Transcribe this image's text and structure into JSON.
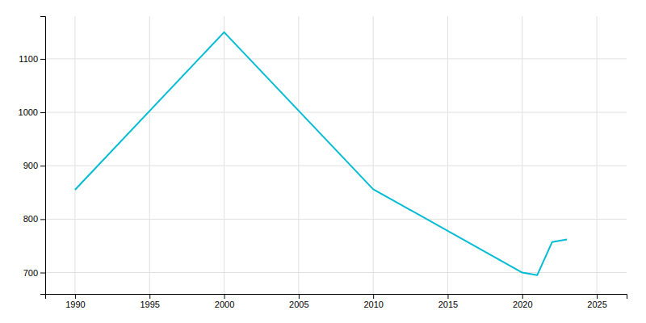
{
  "chart_data": {
    "type": "line",
    "x": [
      1990,
      2000,
      2010,
      2020,
      2021,
      2022,
      2023
    ],
    "values": [
      855,
      1150,
      856,
      700,
      695,
      757,
      762
    ],
    "color": "#00BCD4",
    "xlim": [
      1988,
      2027
    ],
    "ylim": [
      660,
      1180
    ],
    "xticks": [
      1990,
      1995,
      2000,
      2005,
      2010,
      2015,
      2020,
      2025
    ],
    "yticks": [
      700,
      800,
      900,
      1000,
      1100
    ],
    "grid": true
  }
}
